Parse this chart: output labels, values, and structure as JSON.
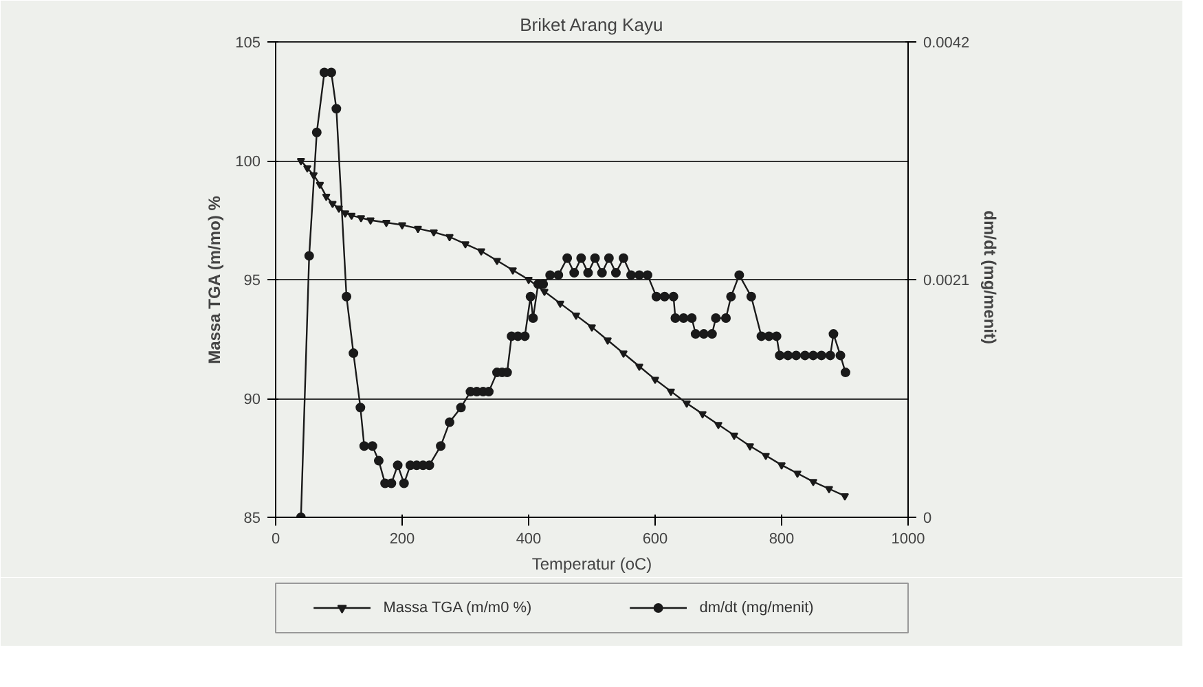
{
  "chart_data": {
    "type": "line",
    "title": "Briket Arang Kayu",
    "xlabel": "Temperatur (oC)",
    "ylabel": "Massa TGA (m/mo) %",
    "y2label": "dm/dt  (mg/menit)",
    "xlim": [
      0,
      1000
    ],
    "xticks": [
      0,
      200,
      400,
      600,
      800,
      1000
    ],
    "ylim": [
      85,
      105
    ],
    "yticks": [
      85,
      90,
      95,
      100,
      105
    ],
    "y2lim": [
      0,
      0.0042
    ],
    "y2ticks": [
      0,
      0.0021,
      0.0042
    ],
    "grid": "y",
    "legend": "bottom",
    "line_style": "solid",
    "series": [
      {
        "name": "Massa TGA (m/m0 %)",
        "color": "#1a1a1a",
        "marker": "triangle",
        "x": [
          40,
          50,
          60,
          70,
          80,
          90,
          100,
          110,
          120,
          135,
          150,
          175,
          200,
          225,
          250,
          275,
          300,
          325,
          350,
          375,
          400,
          425,
          450,
          475,
          500,
          525,
          550,
          575,
          600,
          625,
          650,
          675,
          700,
          725,
          750,
          775,
          800,
          825,
          850,
          875,
          900
        ],
        "values": [
          100,
          99.7,
          99.4,
          99.0,
          98.5,
          98.2,
          98.0,
          97.8,
          97.7,
          97.6,
          97.5,
          97.4,
          97.3,
          97.15,
          97.0,
          96.8,
          96.5,
          96.2,
          95.8,
          95.4,
          95.0,
          94.5,
          94.0,
          93.5,
          93.0,
          92.45,
          91.9,
          91.35,
          90.8,
          90.3,
          89.8,
          89.35,
          88.9,
          88.45,
          88.0,
          87.6,
          87.2,
          86.85,
          86.5,
          86.2,
          85.9
        ]
      },
      {
        "name": "dm/dt (mg/menit)",
        "color": "#1a1a1a",
        "marker": "circle",
        "axis": "y2",
        "x": [
          40,
          53,
          65,
          77,
          88,
          96,
          112,
          123,
          134,
          140,
          153,
          163,
          173,
          183,
          193,
          203,
          213,
          223,
          233,
          243,
          261,
          275,
          293,
          308,
          318,
          328,
          337,
          350,
          358,
          366,
          373,
          383,
          394,
          403,
          407,
          415,
          423,
          434,
          447,
          461,
          472,
          483,
          494,
          505,
          516,
          527,
          538,
          550,
          562,
          575,
          588,
          602,
          615,
          629,
          632,
          645,
          658,
          664,
          677,
          690,
          696,
          712,
          720,
          733,
          752,
          768,
          780,
          792,
          797,
          810,
          823,
          837,
          850,
          863,
          877,
          882,
          893,
          901
        ],
        "values": [
          0,
          0.00231,
          0.0034,
          0.00393,
          0.00393,
          0.00361,
          0.00195,
          0.00145,
          0.00097,
          0.00063,
          0.00063,
          0.0005,
          0.0003,
          0.0003,
          0.00046,
          0.0003,
          0.00046,
          0.00046,
          0.00046,
          0.00046,
          0.00063,
          0.00084,
          0.00097,
          0.00111,
          0.00111,
          0.00111,
          0.00111,
          0.00128,
          0.00128,
          0.00128,
          0.0016,
          0.0016,
          0.0016,
          0.00195,
          0.00176,
          0.00206,
          0.00206,
          0.00214,
          0.00214,
          0.00229,
          0.00216,
          0.00229,
          0.00216,
          0.00229,
          0.00216,
          0.00229,
          0.00216,
          0.00229,
          0.00214,
          0.00214,
          0.00214,
          0.00195,
          0.00195,
          0.00195,
          0.00176,
          0.00176,
          0.00176,
          0.00162,
          0.00162,
          0.00162,
          0.00176,
          0.00176,
          0.00195,
          0.00214,
          0.00195,
          0.0016,
          0.0016,
          0.0016,
          0.00143,
          0.00143,
          0.00143,
          0.00143,
          0.00143,
          0.00143,
          0.00143,
          0.00162,
          0.00143,
          0.00128
        ]
      }
    ]
  }
}
